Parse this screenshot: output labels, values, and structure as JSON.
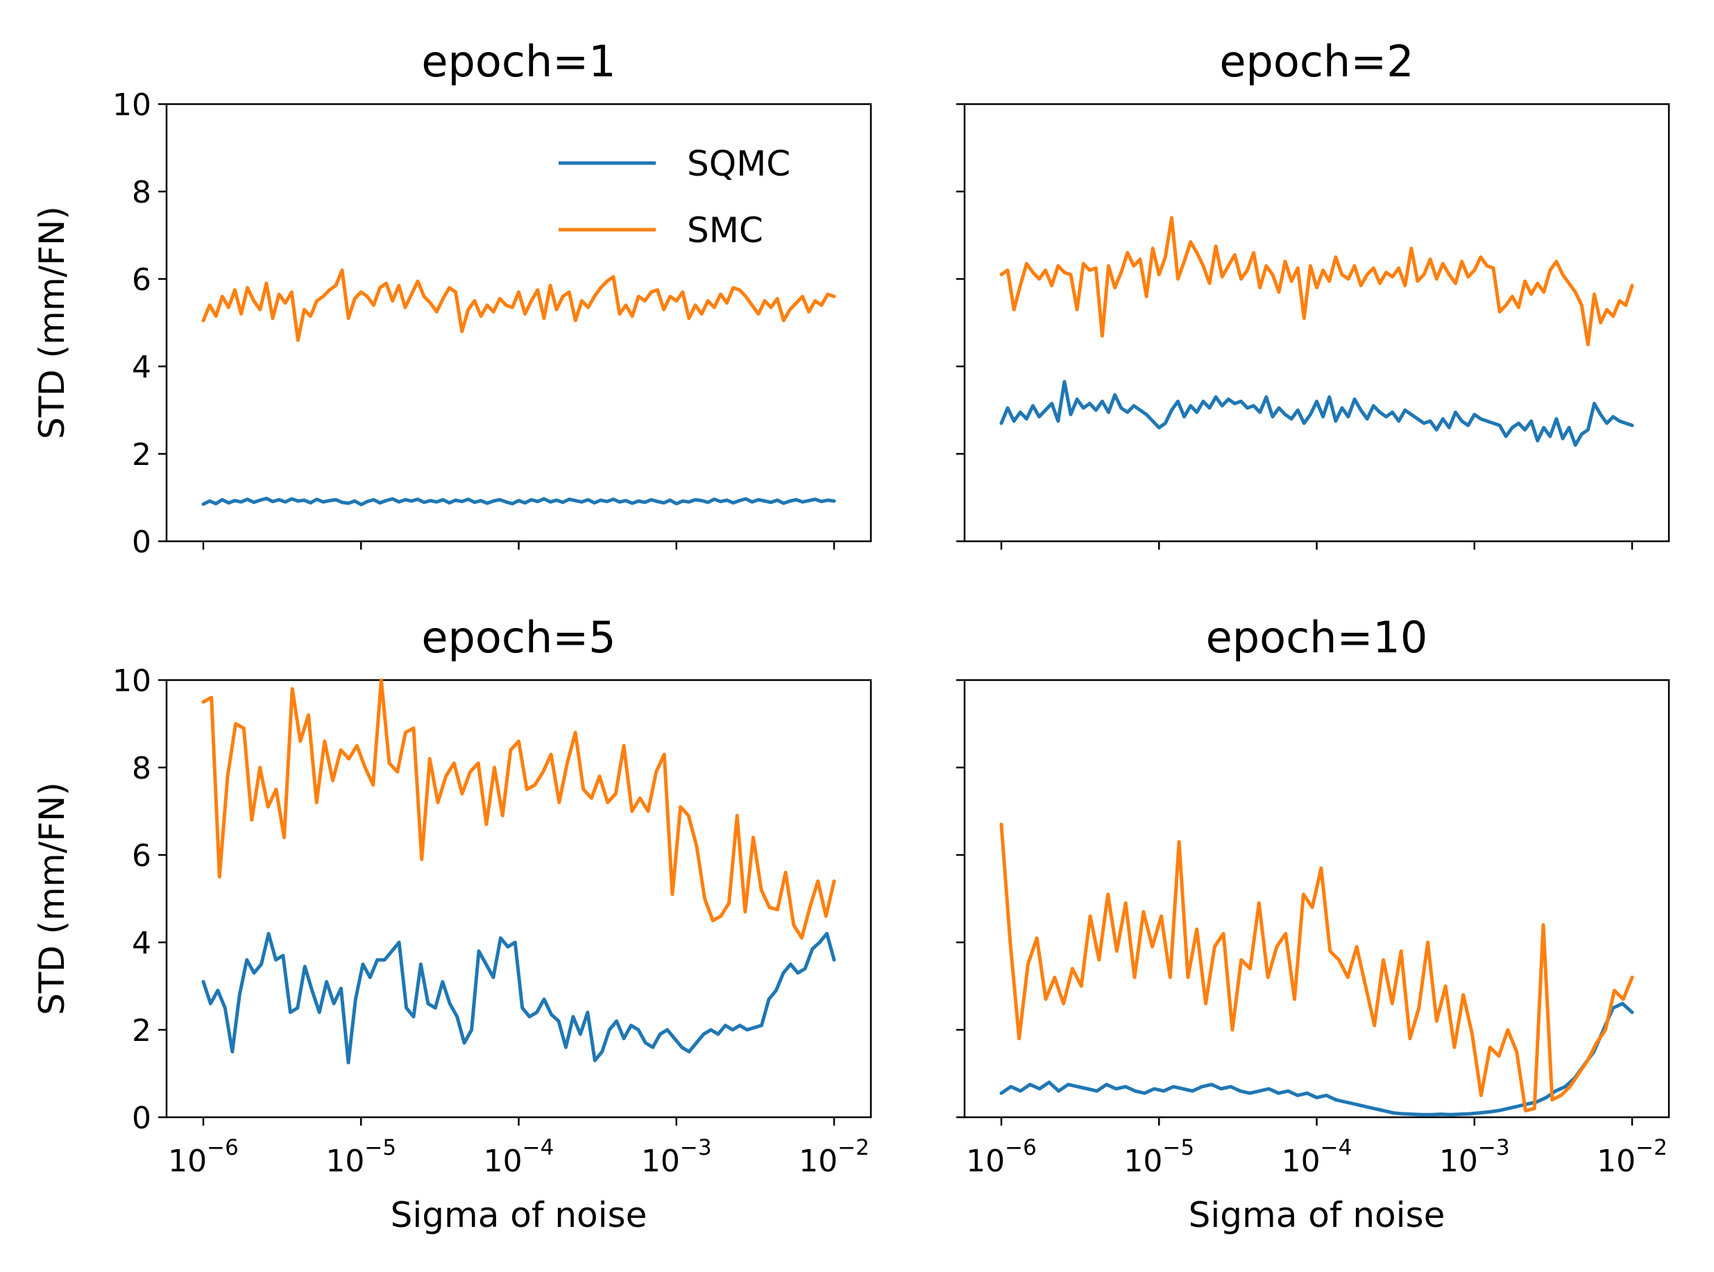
{
  "chart_data": [
    {
      "type": "line",
      "title": "epoch=1",
      "xlabel": "",
      "ylabel": "STD (mm/FN)",
      "xscale": "log",
      "xlim": [
        1e-06,
        0.01
      ],
      "ylim": [
        0,
        10
      ],
      "yticks": [
        "0",
        "2",
        "4",
        "6",
        "8",
        "10"
      ],
      "xticks": [],
      "legend": {
        "position": "top-right",
        "entries": [
          "SQMC",
          "SMC"
        ]
      },
      "series": [
        {
          "name": "SQMC",
          "color": "#1f77b4",
          "values": [
            0.85,
            0.92,
            0.86,
            0.95,
            0.88,
            0.93,
            0.9,
            0.96,
            0.89,
            0.94,
            0.98,
            0.91,
            0.95,
            0.9,
            0.97,
            0.92,
            0.94,
            0.88,
            0.96,
            0.9,
            0.93,
            0.95,
            0.89,
            0.87,
            0.92,
            0.84,
            0.91,
            0.95,
            0.88,
            0.93,
            0.97,
            0.9,
            0.95,
            0.92,
            0.96,
            0.89,
            0.93,
            0.9,
            0.95,
            0.88,
            0.94,
            0.91,
            0.96,
            0.89,
            0.93,
            0.87,
            0.92,
            0.95,
            0.9,
            0.86,
            0.93,
            0.88,
            0.95,
            0.91,
            0.97,
            0.9,
            0.94,
            0.89,
            0.96,
            0.93,
            0.9,
            0.95,
            0.88,
            0.94,
            0.91,
            0.96,
            0.9,
            0.93,
            0.87,
            0.92,
            0.89,
            0.95,
            0.91,
            0.88,
            0.94,
            0.86,
            0.92,
            0.9,
            0.95,
            0.93,
            0.89,
            0.96,
            0.91,
            0.94,
            0.88,
            0.93,
            0.97,
            0.9,
            0.95,
            0.92,
            0.89,
            0.94,
            0.87,
            0.92,
            0.95,
            0.9,
            0.93,
            0.96,
            0.91,
            0.94,
            0.92
          ]
        },
        {
          "name": "SMC",
          "color": "#ff7f0e",
          "values": [
            5.05,
            5.4,
            5.15,
            5.6,
            5.35,
            5.75,
            5.2,
            5.8,
            5.5,
            5.3,
            5.9,
            5.1,
            5.65,
            5.45,
            5.7,
            4.6,
            5.3,
            5.15,
            5.5,
            5.6,
            5.75,
            5.85,
            6.2,
            5.1,
            5.55,
            5.7,
            5.6,
            5.4,
            5.8,
            5.9,
            5.5,
            5.85,
            5.35,
            5.65,
            5.95,
            5.6,
            5.45,
            5.25,
            5.55,
            5.8,
            5.7,
            4.8,
            5.3,
            5.5,
            5.15,
            5.4,
            5.25,
            5.55,
            5.4,
            5.35,
            5.7,
            5.2,
            5.5,
            5.75,
            5.1,
            5.85,
            5.3,
            5.6,
            5.7,
            5.05,
            5.5,
            5.35,
            5.6,
            5.8,
            5.95,
            6.05,
            5.2,
            5.4,
            5.15,
            5.6,
            5.5,
            5.7,
            5.75,
            5.3,
            5.6,
            5.5,
            5.7,
            5.1,
            5.4,
            5.2,
            5.5,
            5.35,
            5.65,
            5.45,
            5.8,
            5.75,
            5.6,
            5.4,
            5.2,
            5.5,
            5.35,
            5.55,
            5.05,
            5.3,
            5.45,
            5.6,
            5.25,
            5.5,
            5.4,
            5.65,
            5.6
          ]
        }
      ]
    },
    {
      "type": "line",
      "title": "epoch=2",
      "xlabel": "",
      "ylabel": "",
      "xscale": "log",
      "xlim": [
        1e-06,
        0.01
      ],
      "ylim": [
        0,
        10
      ],
      "yticks": [],
      "xticks": [],
      "series": [
        {
          "name": "SQMC",
          "color": "#1f77b4",
          "values": [
            2.7,
            3.05,
            2.75,
            2.95,
            2.8,
            3.1,
            2.85,
            3.0,
            3.15,
            2.75,
            3.65,
            2.9,
            3.25,
            3.05,
            3.15,
            3.0,
            3.2,
            2.95,
            3.35,
            3.05,
            2.95,
            3.1,
            3.0,
            2.9,
            2.75,
            2.6,
            2.7,
            3.0,
            3.2,
            2.85,
            3.1,
            2.95,
            3.2,
            3.05,
            3.3,
            3.1,
            3.25,
            3.15,
            3.2,
            3.05,
            3.1,
            2.95,
            3.3,
            2.85,
            3.05,
            2.9,
            2.8,
            3.0,
            2.7,
            2.9,
            3.2,
            2.85,
            3.3,
            2.75,
            3.05,
            2.85,
            3.25,
            3.0,
            2.8,
            3.1,
            2.95,
            2.85,
            2.95,
            2.75,
            3.0,
            2.9,
            2.8,
            2.7,
            2.75,
            2.55,
            2.8,
            2.6,
            2.95,
            2.75,
            2.65,
            2.9,
            2.8,
            2.75,
            2.7,
            2.65,
            2.4,
            2.6,
            2.7,
            2.55,
            2.75,
            2.3,
            2.6,
            2.4,
            2.8,
            2.35,
            2.6,
            2.2,
            2.45,
            2.55,
            3.15,
            2.9,
            2.7,
            2.85,
            2.75,
            2.7,
            2.65
          ]
        },
        {
          "name": "SMC",
          "color": "#ff7f0e",
          "values": [
            6.1,
            6.2,
            5.3,
            5.85,
            6.35,
            6.15,
            6.0,
            6.2,
            5.85,
            6.3,
            6.15,
            6.1,
            5.3,
            6.35,
            6.2,
            6.25,
            4.7,
            6.3,
            5.8,
            6.15,
            6.6,
            6.3,
            6.45,
            5.6,
            6.7,
            6.1,
            6.5,
            7.4,
            6.0,
            6.4,
            6.85,
            6.6,
            6.3,
            5.9,
            6.75,
            6.05,
            6.3,
            6.55,
            6.0,
            6.2,
            6.6,
            5.8,
            6.3,
            6.1,
            5.7,
            6.4,
            5.95,
            6.25,
            5.1,
            6.3,
            5.8,
            6.2,
            5.95,
            6.5,
            6.1,
            6.0,
            6.3,
            5.85,
            6.1,
            6.25,
            5.9,
            6.15,
            6.05,
            6.25,
            5.85,
            6.7,
            5.95,
            6.1,
            6.45,
            6.0,
            6.35,
            6.1,
            5.9,
            6.4,
            6.05,
            6.2,
            6.5,
            6.3,
            6.25,
            5.25,
            5.4,
            5.6,
            5.35,
            5.95,
            5.65,
            5.9,
            5.7,
            6.2,
            6.4,
            6.1,
            5.9,
            5.7,
            5.4,
            4.5,
            5.65,
            5.0,
            5.3,
            5.15,
            5.5,
            5.4,
            5.85
          ]
        }
      ]
    },
    {
      "type": "line",
      "title": "epoch=5",
      "xlabel": "Sigma of noise",
      "ylabel": "STD (mm/FN)",
      "xscale": "log",
      "xlim": [
        1e-06,
        0.01
      ],
      "ylim": [
        0,
        10
      ],
      "yticks": [
        "0",
        "2",
        "4",
        "6",
        "8",
        "10"
      ],
      "xticks": [
        {
          "base": "10",
          "exp": "−6"
        },
        {
          "base": "10",
          "exp": "−5"
        },
        {
          "base": "10",
          "exp": "−4"
        },
        {
          "base": "10",
          "exp": "−3"
        },
        {
          "base": "10",
          "exp": "−2"
        }
      ],
      "series": [
        {
          "name": "SQMC",
          "color": "#1f77b4",
          "values": [
            3.1,
            2.6,
            2.9,
            2.5,
            1.5,
            2.8,
            3.6,
            3.3,
            3.5,
            4.2,
            3.6,
            3.7,
            2.4,
            2.5,
            3.45,
            2.9,
            2.4,
            3.1,
            2.6,
            2.95,
            1.25,
            2.7,
            3.5,
            3.2,
            3.6,
            3.6,
            3.8,
            4.0,
            2.5,
            2.3,
            3.5,
            2.6,
            2.5,
            3.1,
            2.6,
            2.3,
            1.7,
            2.0,
            3.8,
            3.5,
            3.2,
            4.1,
            3.9,
            4.0,
            2.5,
            2.3,
            2.4,
            2.7,
            2.35,
            2.2,
            1.6,
            2.3,
            1.9,
            2.4,
            1.3,
            1.5,
            2.0,
            2.2,
            1.8,
            2.1,
            2.0,
            1.7,
            1.6,
            1.9,
            2.0,
            1.8,
            1.6,
            1.5,
            1.7,
            1.9,
            2.0,
            1.9,
            2.1,
            2.0,
            2.1,
            2.0,
            2.05,
            2.1,
            2.7,
            2.9,
            3.3,
            3.5,
            3.3,
            3.4,
            3.85,
            4.0,
            4.2,
            3.6
          ]
        },
        {
          "name": "SMC",
          "color": "#ff7f0e",
          "values": [
            9.5,
            9.6,
            5.5,
            7.8,
            9.0,
            8.9,
            6.8,
            8.0,
            7.1,
            7.5,
            6.4,
            9.8,
            8.6,
            9.2,
            7.2,
            8.6,
            7.7,
            8.4,
            8.2,
            8.5,
            8.0,
            7.6,
            10.0,
            8.1,
            7.9,
            8.8,
            8.9,
            5.9,
            8.2,
            7.2,
            7.8,
            8.1,
            7.4,
            7.9,
            8.1,
            6.7,
            8.0,
            6.9,
            8.4,
            8.6,
            7.5,
            7.6,
            7.9,
            8.3,
            7.2,
            8.1,
            8.8,
            7.5,
            7.3,
            7.8,
            7.2,
            7.4,
            8.5,
            7.0,
            7.3,
            7.0,
            7.9,
            8.3,
            5.1,
            7.1,
            6.9,
            6.2,
            5.0,
            4.5,
            4.6,
            4.9,
            6.9,
            4.7,
            6.4,
            5.2,
            4.8,
            4.75,
            5.6,
            4.4,
            4.1,
            4.8,
            5.4,
            4.6,
            5.4
          ]
        }
      ]
    },
    {
      "type": "line",
      "title": "epoch=10",
      "xlabel": "Sigma of noise",
      "ylabel": "",
      "xscale": "log",
      "xlim": [
        1e-06,
        0.01
      ],
      "ylim": [
        0,
        10
      ],
      "yticks": [],
      "xticks": [
        {
          "base": "10",
          "exp": "−6"
        },
        {
          "base": "10",
          "exp": "−5"
        },
        {
          "base": "10",
          "exp": "−4"
        },
        {
          "base": "10",
          "exp": "−3"
        },
        {
          "base": "10",
          "exp": "−2"
        }
      ],
      "series": [
        {
          "name": "SQMC",
          "color": "#1f77b4",
          "values": [
            0.55,
            0.7,
            0.6,
            0.75,
            0.65,
            0.8,
            0.6,
            0.75,
            0.7,
            0.65,
            0.6,
            0.75,
            0.65,
            0.7,
            0.6,
            0.55,
            0.65,
            0.6,
            0.7,
            0.65,
            0.6,
            0.7,
            0.75,
            0.65,
            0.7,
            0.6,
            0.55,
            0.6,
            0.65,
            0.55,
            0.6,
            0.5,
            0.55,
            0.45,
            0.5,
            0.4,
            0.35,
            0.3,
            0.25,
            0.2,
            0.15,
            0.1,
            0.08,
            0.07,
            0.06,
            0.06,
            0.07,
            0.06,
            0.07,
            0.08,
            0.1,
            0.12,
            0.15,
            0.2,
            0.25,
            0.3,
            0.35,
            0.45,
            0.6,
            0.7,
            0.9,
            1.2,
            1.5,
            2.0,
            2.5,
            2.6,
            2.4
          ]
        },
        {
          "name": "SMC",
          "color": "#ff7f0e",
          "values": [
            6.7,
            4.0,
            1.8,
            3.5,
            4.1,
            2.7,
            3.2,
            2.6,
            3.4,
            3.0,
            4.6,
            3.6,
            5.1,
            3.8,
            4.9,
            3.2,
            4.7,
            3.9,
            4.6,
            3.2,
            6.3,
            3.2,
            4.3,
            2.6,
            3.9,
            4.2,
            2.0,
            3.6,
            3.4,
            4.9,
            3.2,
            3.9,
            4.2,
            2.7,
            5.1,
            4.8,
            5.7,
            3.8,
            3.6,
            3.2,
            3.9,
            3.0,
            2.1,
            3.6,
            2.6,
            3.8,
            1.8,
            2.5,
            4.0,
            2.2,
            3.0,
            1.6,
            2.8,
            1.9,
            0.5,
            1.6,
            1.4,
            2.0,
            1.5,
            0.15,
            0.2,
            4.4,
            0.4,
            0.5,
            0.7,
            1.0,
            1.3,
            1.7,
            2.0,
            2.9,
            2.7,
            3.2
          ]
        }
      ]
    }
  ]
}
